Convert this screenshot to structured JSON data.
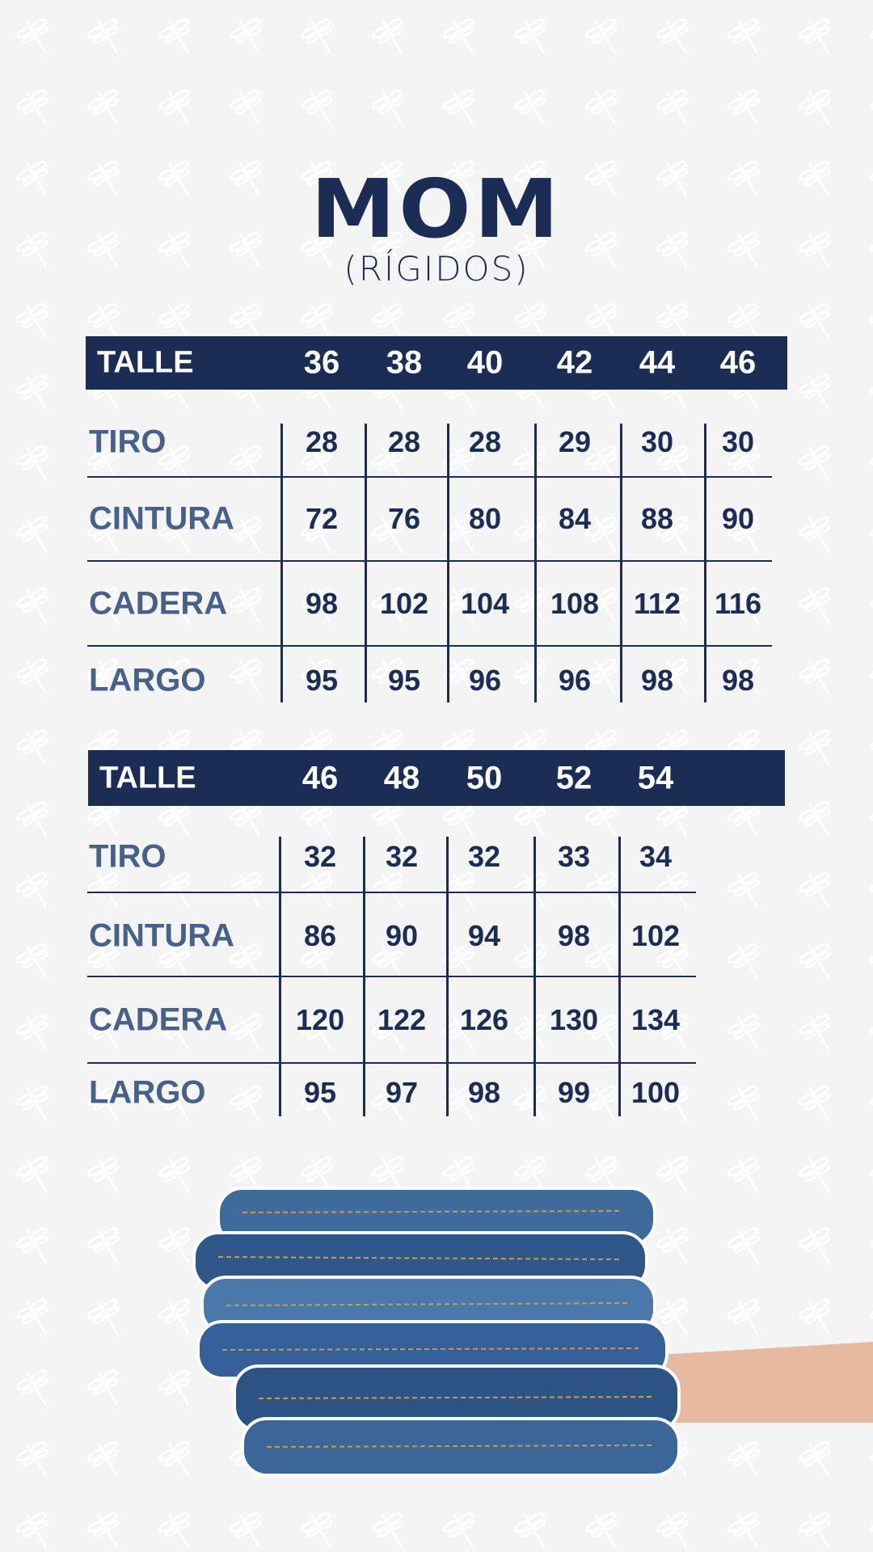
{
  "title": "MOM",
  "subtitle": "(RÍGIDOS)",
  "colors": {
    "primary": "#1c2d55",
    "label": "#46628a",
    "background": "#f4f4f5"
  },
  "tables": [
    {
      "header_label": "TALLE",
      "sizes": [
        "36",
        "38",
        "40",
        "42",
        "44",
        "46"
      ],
      "rows": [
        {
          "label": "TIRO",
          "values": [
            "28",
            "28",
            "28",
            "29",
            "30",
            "30"
          ]
        },
        {
          "label": "CINTURA",
          "values": [
            "72",
            "76",
            "80",
            "84",
            "88",
            "90"
          ]
        },
        {
          "label": "CADERA",
          "values": [
            "98",
            "102",
            "104",
            "108",
            "112",
            "116"
          ]
        },
        {
          "label": "LARGO",
          "values": [
            "95",
            "95",
            "96",
            "96",
            "98",
            "98"
          ]
        }
      ]
    },
    {
      "header_label": "TALLE",
      "sizes": [
        "46",
        "48",
        "50",
        "52",
        "54"
      ],
      "rows": [
        {
          "label": "TIRO",
          "values": [
            "32",
            "32",
            "32",
            "33",
            "34"
          ]
        },
        {
          "label": "CINTURA",
          "values": [
            "86",
            "90",
            "94",
            "98",
            "102"
          ]
        },
        {
          "label": "CADERA",
          "values": [
            "120",
            "122",
            "126",
            "130",
            "134"
          ]
        },
        {
          "label": "LARGO",
          "values": [
            "95",
            "97",
            "98",
            "99",
            "100"
          ]
        }
      ]
    }
  ],
  "image": {
    "description_icon": "stack-of-jeans-held-by-hands"
  }
}
